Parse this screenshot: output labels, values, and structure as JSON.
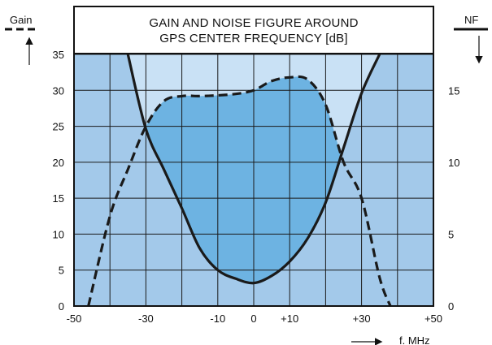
{
  "chart_data": {
    "type": "line",
    "title": "GAIN AND NOISE FIGURE AROUND",
    "subtitle": "GPS CENTER FREQUENCY [dB]",
    "xlabel": "f. MHz",
    "ylabel_left": "Gain",
    "ylabel_right": "NF",
    "xlim": [
      -50,
      50
    ],
    "ylim_left": [
      0,
      35
    ],
    "ylim_right": [
      0,
      17.5
    ],
    "x_ticks": [
      -50,
      -30,
      -10,
      0,
      10,
      30,
      50
    ],
    "x_tick_labels": [
      "-50",
      "-30",
      "-10",
      "0",
      "+10",
      "+30",
      "+50"
    ],
    "y_ticks_left": [
      0,
      5,
      10,
      15,
      20,
      25,
      30,
      35
    ],
    "y_tick_labels_left": [
      "0",
      "5",
      "10",
      "15",
      "20",
      "25",
      "30",
      "35"
    ],
    "y_ticks_right": [
      0,
      5,
      10,
      15
    ],
    "y_tick_labels_right": [
      "0",
      "5",
      "10",
      "15"
    ],
    "grid": true,
    "legend": "none",
    "colors": {
      "background": "#a3c9ea",
      "inner_region": "#c9e1f5",
      "shaded_region": "#6db3e2",
      "grid": "#1a1a1a",
      "line": "#1a1a1a"
    },
    "series": [
      {
        "name": "Gain",
        "axis": "left",
        "style": "dashed",
        "x": [
          -46,
          -40,
          -35,
          -30,
          -25,
          -20,
          -15,
          -10,
          -5,
          0,
          5,
          10,
          15,
          20,
          25,
          30,
          35,
          38
        ],
        "y": [
          0,
          12.5,
          19,
          25,
          28.5,
          29.2,
          29.2,
          29.3,
          29.5,
          30,
          31.3,
          31.8,
          31.5,
          28,
          20,
          15,
          4,
          0
        ]
      },
      {
        "name": "NF",
        "axis": "right",
        "style": "solid",
        "x": [
          -35,
          -30,
          -25,
          -20,
          -15,
          -10,
          -5,
          0,
          5,
          10,
          15,
          20,
          25,
          30,
          35
        ],
        "y": [
          17.5,
          12.3,
          9.5,
          6.8,
          4.0,
          2.5,
          1.9,
          1.6,
          2.1,
          3.1,
          4.7,
          7.2,
          11.0,
          14.8,
          17.5
        ]
      }
    ]
  }
}
